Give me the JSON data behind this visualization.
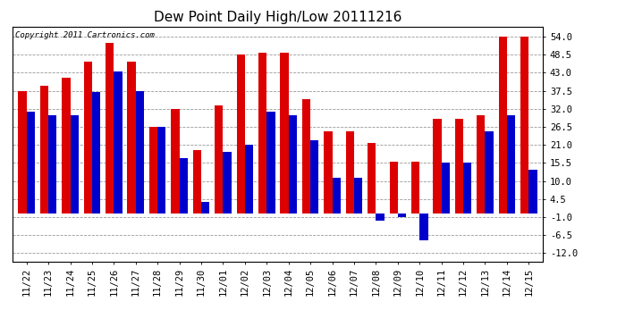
{
  "title": "Dew Point Daily High/Low 20111216",
  "copyright": "Copyright 2011 Cartronics.com",
  "dates": [
    "11/22",
    "11/23",
    "11/24",
    "11/25",
    "11/26",
    "11/27",
    "11/28",
    "11/29",
    "11/30",
    "12/01",
    "12/02",
    "12/03",
    "12/04",
    "12/05",
    "12/06",
    "12/07",
    "12/08",
    "12/09",
    "12/10",
    "12/11",
    "12/12",
    "12/13",
    "12/14",
    "12/15"
  ],
  "highs": [
    37.5,
    39.0,
    41.5,
    46.5,
    52.0,
    46.5,
    26.5,
    32.0,
    19.5,
    33.0,
    48.5,
    49.0,
    49.0,
    35.0,
    25.0,
    25.0,
    21.5,
    16.0,
    16.0,
    29.0,
    29.0,
    30.0,
    54.0,
    54.0
  ],
  "lows": [
    31.0,
    30.0,
    30.0,
    37.0,
    43.5,
    37.5,
    26.5,
    17.0,
    3.5,
    19.0,
    21.0,
    31.0,
    30.0,
    22.5,
    11.0,
    11.0,
    -2.0,
    -1.0,
    -8.0,
    15.5,
    15.5,
    25.0,
    30.0,
    13.5
  ],
  "high_color": "#dd0000",
  "low_color": "#0000cc",
  "bg_color": "#ffffff",
  "plot_bg_color": "#ffffff",
  "grid_color": "#999999",
  "yticks": [
    -12.0,
    -6.5,
    -1.0,
    4.5,
    10.0,
    15.5,
    21.0,
    26.5,
    32.0,
    37.5,
    43.0,
    48.5,
    54.0
  ],
  "ylim": [
    -14.5,
    57.0
  ],
  "bar_width": 0.38,
  "title_fontsize": 11,
  "tick_fontsize": 7.5,
  "copyright_fontsize": 6.5,
  "fig_width": 6.9,
  "fig_height": 3.75,
  "dpi": 100
}
